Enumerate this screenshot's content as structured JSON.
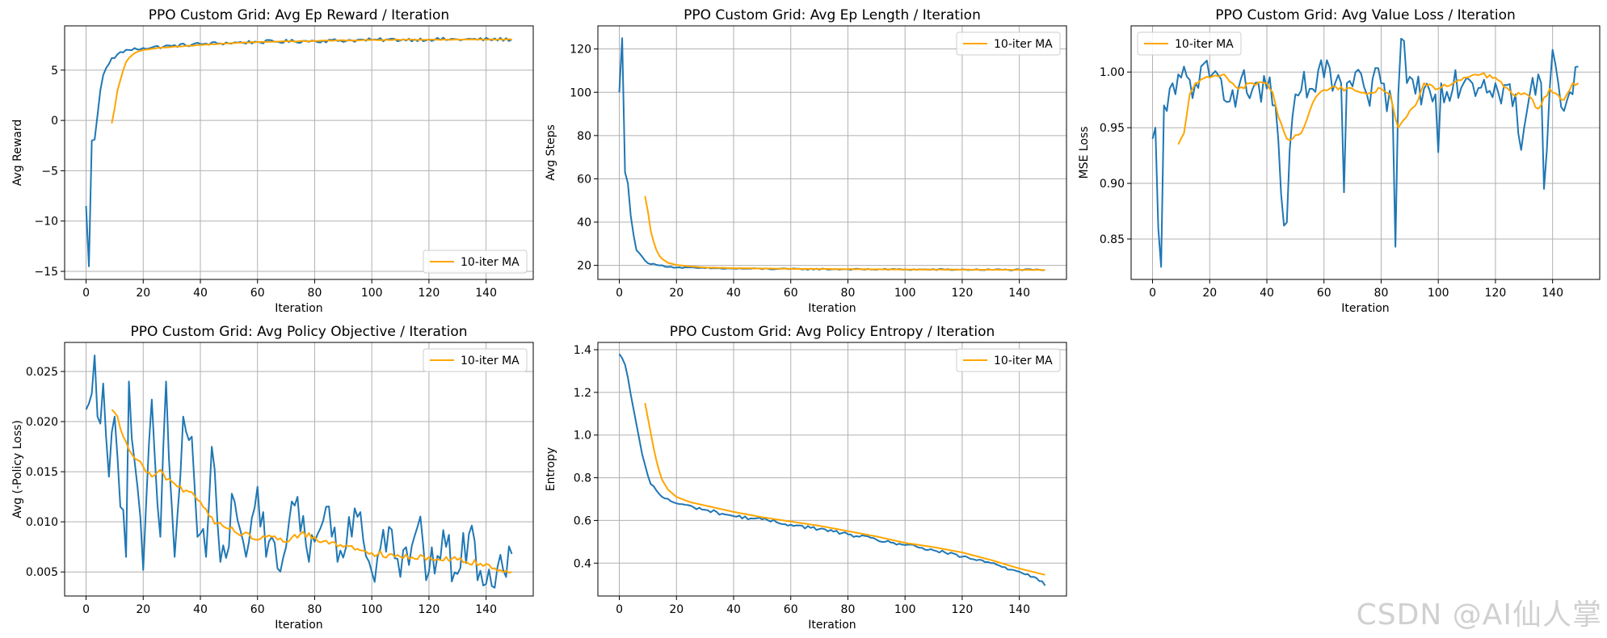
{
  "colors": {
    "raw": "#1f77b4",
    "ma": "#ffa500",
    "grid": "#b0b0b0"
  },
  "watermark": "CSDN @AI仙人掌",
  "chart_data": [
    {
      "id": "reward",
      "type": "line",
      "title": "PPO Custom Grid: Avg Ep Reward / Iteration",
      "xlabel": "Iteration",
      "ylabel": "Avg Reward",
      "xlim": [
        -7.5,
        156.5
      ],
      "ylim": [
        -15.8,
        9.4
      ],
      "xticks": [
        0,
        20,
        40,
        60,
        80,
        100,
        120,
        140
      ],
      "yticks": [
        -15,
        -10,
        -5,
        0,
        5
      ],
      "legend": {
        "label": "10-iter MA",
        "loc": "lower-right"
      },
      "raw_anchors": [
        [
          0,
          -8.5
        ],
        [
          1,
          -14.5
        ],
        [
          2,
          -2.0
        ],
        [
          3,
          -1.9
        ],
        [
          4,
          0.5
        ],
        [
          5,
          3.0
        ],
        [
          6,
          4.5
        ],
        [
          7,
          5.2
        ],
        [
          8,
          5.6
        ],
        [
          9,
          6.2
        ],
        [
          10,
          6.2
        ],
        [
          12,
          6.8
        ],
        [
          15,
          7.0
        ],
        [
          20,
          7.2
        ],
        [
          30,
          7.4
        ],
        [
          40,
          7.6
        ],
        [
          60,
          7.8
        ],
        [
          80,
          7.9
        ],
        [
          100,
          8.0
        ],
        [
          120,
          8.05
        ],
        [
          149,
          8.05
        ]
      ],
      "raw_noise": 0.18,
      "ma_anchors": [
        [
          9,
          -0.3
        ],
        [
          10,
          1.2
        ],
        [
          11,
          3.0
        ],
        [
          12,
          4.0
        ],
        [
          13,
          5.0
        ],
        [
          14,
          5.8
        ],
        [
          15,
          6.2
        ],
        [
          17,
          6.7
        ],
        [
          20,
          7.0
        ],
        [
          25,
          7.2
        ],
        [
          30,
          7.3
        ],
        [
          40,
          7.5
        ],
        [
          60,
          7.8
        ],
        [
          80,
          7.9
        ],
        [
          100,
          8.0
        ],
        [
          149,
          8.05
        ]
      ],
      "ma_noise": 0.03
    },
    {
      "id": "length",
      "type": "line",
      "title": "PPO Custom Grid: Avg Ep Length / Iteration",
      "xlabel": "Iteration",
      "ylabel": "Avg Steps",
      "xlim": [
        -7.5,
        156.5
      ],
      "ylim": [
        13.5,
        130.7
      ],
      "xticks": [
        0,
        20,
        40,
        60,
        80,
        100,
        120,
        140
      ],
      "yticks": [
        20,
        40,
        60,
        80,
        100,
        120
      ],
      "legend": {
        "label": "10-iter MA",
        "loc": "top-right"
      },
      "raw_anchors": [
        [
          0,
          100
        ],
        [
          1,
          125
        ],
        [
          2,
          63
        ],
        [
          3,
          58
        ],
        [
          4,
          43
        ],
        [
          5,
          34
        ],
        [
          6,
          27
        ],
        [
          8,
          24
        ],
        [
          10,
          21
        ],
        [
          14,
          20
        ],
        [
          20,
          19
        ],
        [
          30,
          18.7
        ],
        [
          40,
          18.5
        ],
        [
          60,
          18.3
        ],
        [
          100,
          18.1
        ],
        [
          149,
          17.9
        ]
      ],
      "raw_noise": 0.3,
      "ma_anchors": [
        [
          9,
          52
        ],
        [
          10,
          45
        ],
        [
          11,
          36
        ],
        [
          12,
          31
        ],
        [
          13,
          27
        ],
        [
          14,
          24.5
        ],
        [
          15,
          23
        ],
        [
          17,
          21.2
        ],
        [
          20,
          20.2
        ],
        [
          25,
          19.5
        ],
        [
          30,
          19
        ],
        [
          40,
          18.7
        ],
        [
          60,
          18.4
        ],
        [
          100,
          18.1
        ],
        [
          149,
          17.9
        ]
      ],
      "ma_noise": 0.05
    },
    {
      "id": "value_loss",
      "type": "line",
      "title": "PPO Custom Grid: Avg Value Loss / Iteration",
      "xlabel": "Iteration",
      "ylabel": "MSE Loss",
      "xlim": [
        -7.5,
        156.5
      ],
      "ylim": [
        0.8137,
        1.0415
      ],
      "xticks": [
        0,
        20,
        40,
        60,
        80,
        100,
        120,
        140
      ],
      "yticks": [
        0.85,
        0.9,
        0.95,
        1.0
      ],
      "legend": {
        "label": "10-iter MA",
        "loc": "top-left"
      },
      "raw_anchors": [
        [
          0,
          0.94
        ],
        [
          1,
          0.95
        ],
        [
          2,
          0.86
        ],
        [
          3,
          0.825
        ],
        [
          4,
          0.97
        ],
        [
          5,
          0.965
        ],
        [
          6,
          0.985
        ],
        [
          7,
          0.99
        ],
        [
          8,
          0.98
        ],
        [
          10,
          0.995
        ],
        [
          15,
          0.99
        ],
        [
          20,
          0.995
        ],
        [
          30,
          0.985
        ],
        [
          40,
          0.985
        ],
        [
          42,
          0.97
        ],
        [
          44,
          0.94
        ],
        [
          45,
          0.89
        ],
        [
          46,
          0.862
        ],
        [
          47,
          0.865
        ],
        [
          48,
          0.93
        ],
        [
          50,
          0.98
        ],
        [
          55,
          0.985
        ],
        [
          60,
          0.995
        ],
        [
          66,
          0.99
        ],
        [
          67,
          0.892
        ],
        [
          68,
          0.99
        ],
        [
          75,
          0.98
        ],
        [
          80,
          0.99
        ],
        [
          84,
          0.97
        ],
        [
          85,
          0.843
        ],
        [
          86,
          0.98
        ],
        [
          87,
          1.03
        ],
        [
          88,
          1.028
        ],
        [
          89,
          0.99
        ],
        [
          95,
          0.985
        ],
        [
          99,
          0.98
        ],
        [
          100,
          0.928
        ],
        [
          101,
          0.99
        ],
        [
          110,
          0.995
        ],
        [
          120,
          0.99
        ],
        [
          127,
          0.98
        ],
        [
          128,
          0.945
        ],
        [
          129,
          0.93
        ],
        [
          132,
          0.98
        ],
        [
          136,
          0.99
        ],
        [
          137,
          0.895
        ],
        [
          138,
          0.93
        ],
        [
          140,
          1.02
        ],
        [
          142,
          0.99
        ],
        [
          144,
          0.965
        ],
        [
          147,
          0.98
        ],
        [
          149,
          1.005
        ]
      ],
      "raw_noise": 0.018,
      "ma_anchors": [
        [
          9,
          0.935
        ],
        [
          11,
          0.945
        ],
        [
          13,
          0.98
        ],
        [
          15,
          0.99
        ],
        [
          20,
          0.995
        ],
        [
          25,
          0.998
        ],
        [
          28,
          0.99
        ],
        [
          30,
          0.985
        ],
        [
          35,
          0.99
        ],
        [
          40,
          0.99
        ],
        [
          42,
          0.982
        ],
        [
          44,
          0.96
        ],
        [
          47,
          0.94
        ],
        [
          49,
          0.94
        ],
        [
          52,
          0.945
        ],
        [
          55,
          0.965
        ],
        [
          58,
          0.98
        ],
        [
          62,
          0.985
        ],
        [
          70,
          0.985
        ],
        [
          75,
          0.98
        ],
        [
          80,
          0.985
        ],
        [
          83,
          0.98
        ],
        [
          86,
          0.95
        ],
        [
          89,
          0.96
        ],
        [
          92,
          0.97
        ],
        [
          95,
          0.99
        ],
        [
          100,
          0.985
        ],
        [
          110,
          0.995
        ],
        [
          115,
          0.998
        ],
        [
          120,
          0.995
        ],
        [
          126,
          0.98
        ],
        [
          131,
          0.98
        ],
        [
          135,
          0.967
        ],
        [
          139,
          0.985
        ],
        [
          144,
          0.975
        ],
        [
          147,
          0.99
        ],
        [
          149,
          0.99
        ]
      ],
      "ma_noise": 0.002
    },
    {
      "id": "policy_objective",
      "type": "line",
      "title": "PPO Custom Grid: Avg Policy Objective / Iteration",
      "xlabel": "Iteration",
      "ylabel": "Avg (-Policy Loss)",
      "xlim": [
        -7.5,
        156.5
      ],
      "ylim": [
        0.0026,
        0.0279
      ],
      "xticks": [
        0,
        20,
        40,
        60,
        80,
        100,
        120,
        140
      ],
      "yticks": [
        0.005,
        0.01,
        0.015,
        0.02,
        0.025
      ],
      "legend": {
        "label": "10-iter MA",
        "loc": "top-right"
      },
      "raw_anchors": [
        [
          0,
          0.0212
        ],
        [
          1,
          0.0218
        ],
        [
          2,
          0.0228
        ],
        [
          3,
          0.0266
        ],
        [
          4,
          0.0205
        ],
        [
          5,
          0.0198
        ],
        [
          6,
          0.0238
        ],
        [
          7,
          0.0185
        ],
        [
          8,
          0.0145
        ],
        [
          10,
          0.0205
        ],
        [
          12,
          0.0115
        ],
        [
          14,
          0.0065
        ],
        [
          15,
          0.024
        ],
        [
          17,
          0.016
        ],
        [
          20,
          0.0052
        ],
        [
          23,
          0.0222
        ],
        [
          26,
          0.0085
        ],
        [
          28,
          0.024
        ],
        [
          31,
          0.0065
        ],
        [
          34,
          0.0205
        ],
        [
          37,
          0.0185
        ],
        [
          39,
          0.0085
        ],
        [
          42,
          0.0065
        ],
        [
          44,
          0.0175
        ],
        [
          47,
          0.006
        ],
        [
          52,
          0.012
        ],
        [
          56,
          0.0065
        ],
        [
          60,
          0.0135
        ],
        [
          63,
          0.0065
        ],
        [
          70,
          0.0075
        ],
        [
          74,
          0.0125
        ],
        [
          78,
          0.006
        ],
        [
          84,
          0.0115
        ],
        [
          88,
          0.006
        ],
        [
          95,
          0.0105
        ],
        [
          100,
          0.005
        ],
        [
          106,
          0.0095
        ],
        [
          110,
          0.0045
        ],
        [
          116,
          0.0095
        ],
        [
          120,
          0.005
        ],
        [
          126,
          0.0075
        ],
        [
          130,
          0.0048
        ],
        [
          134,
          0.0088
        ],
        [
          140,
          0.0038
        ],
        [
          144,
          0.0055
        ],
        [
          147,
          0.0045
        ],
        [
          149,
          0.0068
        ]
      ],
      "raw_noise": 0.0022,
      "ma_anchors": [
        [
          9,
          0.0212
        ],
        [
          11,
          0.0205
        ],
        [
          13,
          0.0185
        ],
        [
          15,
          0.0172
        ],
        [
          20,
          0.0155
        ],
        [
          23,
          0.0145
        ],
        [
          26,
          0.0152
        ],
        [
          28,
          0.0142
        ],
        [
          32,
          0.0135
        ],
        [
          36,
          0.013
        ],
        [
          40,
          0.012
        ],
        [
          45,
          0.0098
        ],
        [
          50,
          0.0093
        ],
        [
          55,
          0.0088
        ],
        [
          60,
          0.0082
        ],
        [
          65,
          0.0085
        ],
        [
          70,
          0.008
        ],
        [
          75,
          0.0088
        ],
        [
          80,
          0.0085
        ],
        [
          85,
          0.0078
        ],
        [
          90,
          0.0075
        ],
        [
          95,
          0.0073
        ],
        [
          100,
          0.0069
        ],
        [
          110,
          0.0065
        ],
        [
          120,
          0.0065
        ],
        [
          130,
          0.0062
        ],
        [
          140,
          0.0058
        ],
        [
          145,
          0.0052
        ],
        [
          149,
          0.005
        ]
      ],
      "ma_noise": 0.0003
    },
    {
      "id": "entropy",
      "type": "line",
      "title": "PPO Custom Grid: Avg Policy Entropy / Iteration",
      "xlabel": "Iteration",
      "ylabel": "Entropy",
      "xlim": [
        -7.5,
        156.5
      ],
      "ylim": [
        0.246,
        1.434
      ],
      "xticks": [
        0,
        20,
        40,
        60,
        80,
        100,
        120,
        140
      ],
      "yticks": [
        0.4,
        0.6,
        0.8,
        1.0,
        1.2,
        1.4
      ],
      "legend": {
        "label": "10-iter MA",
        "loc": "top-right"
      },
      "raw_anchors": [
        [
          0,
          1.38
        ],
        [
          1,
          1.36
        ],
        [
          2,
          1.33
        ],
        [
          3,
          1.27
        ],
        [
          4,
          1.19
        ],
        [
          5,
          1.12
        ],
        [
          6,
          1.05
        ],
        [
          7,
          0.98
        ],
        [
          8,
          0.91
        ],
        [
          9,
          0.86
        ],
        [
          10,
          0.81
        ],
        [
          11,
          0.77
        ],
        [
          13,
          0.74
        ],
        [
          15,
          0.71
        ],
        [
          20,
          0.68
        ],
        [
          30,
          0.65
        ],
        [
          40,
          0.62
        ],
        [
          50,
          0.605
        ],
        [
          60,
          0.58
        ],
        [
          70,
          0.56
        ],
        [
          80,
          0.535
        ],
        [
          90,
          0.51
        ],
        [
          100,
          0.485
        ],
        [
          110,
          0.46
        ],
        [
          120,
          0.43
        ],
        [
          130,
          0.4
        ],
        [
          140,
          0.36
        ],
        [
          146,
          0.33
        ],
        [
          148,
          0.315
        ],
        [
          149,
          0.295
        ]
      ],
      "raw_noise": 0.008,
      "ma_anchors": [
        [
          9,
          1.15
        ],
        [
          10,
          1.08
        ],
        [
          11,
          1.01
        ],
        [
          12,
          0.94
        ],
        [
          13,
          0.88
        ],
        [
          14,
          0.83
        ],
        [
          15,
          0.79
        ],
        [
          17,
          0.745
        ],
        [
          20,
          0.71
        ],
        [
          25,
          0.685
        ],
        [
          30,
          0.67
        ],
        [
          40,
          0.64
        ],
        [
          50,
          0.615
        ],
        [
          60,
          0.595
        ],
        [
          70,
          0.575
        ],
        [
          80,
          0.55
        ],
        [
          90,
          0.525
        ],
        [
          100,
          0.495
        ],
        [
          110,
          0.475
        ],
        [
          120,
          0.45
        ],
        [
          130,
          0.415
        ],
        [
          140,
          0.375
        ],
        [
          149,
          0.345
        ]
      ],
      "ma_noise": 0.0
    }
  ]
}
